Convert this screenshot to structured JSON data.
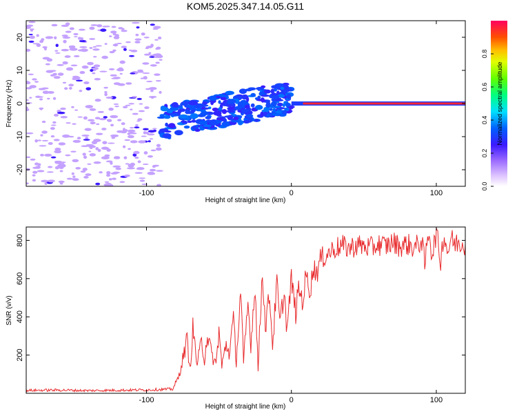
{
  "chart_data": [
    {
      "type": "heatmap",
      "title": "KOM5.2025.347.14.05.G11",
      "xlabel": "Height of straight line (km)",
      "ylabel": "Frequency (Hz)",
      "xlim": [
        -183,
        120
      ],
      "ylim": [
        -25,
        25
      ],
      "xticks": [
        -100,
        0,
        100
      ],
      "yticks": [
        -20,
        -10,
        0,
        10,
        20
      ],
      "colorbar": {
        "label": "Normalized spectral amplitude",
        "range": [
          0,
          1
        ],
        "ticks": [
          "0.0",
          "0.2",
          "0.4",
          "0.6",
          "0.8"
        ]
      },
      "features": [
        {
          "name": "noise-field",
          "x_range": [
            -183,
            -90
          ],
          "y_range": [
            -25,
            25
          ],
          "amplitude": 0.1
        },
        {
          "name": "scattered-blobs",
          "x_range": [
            -90,
            0
          ],
          "y_range": [
            -11,
            8
          ],
          "amplitude": 0.25
        },
        {
          "name": "coherent-line",
          "x_range": [
            0,
            120
          ],
          "frequency": 0,
          "amplitude": 0.95
        }
      ]
    },
    {
      "type": "line",
      "xlabel": "Height of straight line (km)",
      "ylabel": "SNR (v/v)",
      "xlim": [
        -183,
        120
      ],
      "ylim": [
        0,
        870
      ],
      "xticks": [
        -100,
        0,
        100
      ],
      "yticks": [
        200,
        400,
        600,
        800
      ],
      "color": "#e8292b",
      "series": [
        {
          "name": "SNR",
          "x": [
            -183,
            -160,
            -140,
            -120,
            -100,
            -90,
            -82,
            -78,
            -75,
            -72,
            -70,
            -68,
            -65,
            -62,
            -60,
            -58,
            -55,
            -52,
            -50,
            -48,
            -45,
            -43,
            -40,
            -38,
            -35,
            -33,
            -30,
            -28,
            -25,
            -23,
            -20,
            -18,
            -15,
            -13,
            -10,
            -8,
            -5,
            -3,
            0,
            3,
            5,
            8,
            10,
            13,
            15,
            18,
            20,
            25,
            30,
            35,
            40,
            45,
            50,
            55,
            60,
            65,
            70,
            75,
            80,
            85,
            90,
            92,
            95,
            97,
            100,
            103,
            105,
            108,
            110,
            113,
            115,
            120
          ],
          "y": [
            15,
            17,
            14,
            16,
            18,
            20,
            22,
            80,
            180,
            280,
            120,
            340,
            150,
            270,
            180,
            310,
            200,
            150,
            330,
            140,
            260,
            210,
            380,
            170,
            540,
            150,
            470,
            260,
            570,
            120,
            650,
            350,
            520,
            250,
            580,
            360,
            530,
            330,
            600,
            420,
            550,
            480,
            620,
            540,
            650,
            640,
            700,
            730,
            760,
            770,
            760,
            775,
            770,
            760,
            780,
            770,
            790,
            770,
            780,
            760,
            800,
            670,
            860,
            720,
            840,
            690,
            830,
            740,
            810,
            780,
            790,
            780
          ]
        }
      ]
    }
  ]
}
